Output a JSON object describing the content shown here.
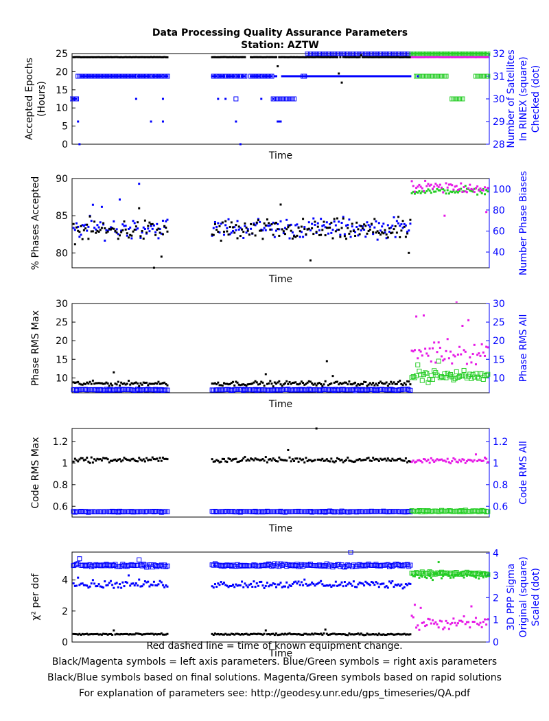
{
  "title_line1": "Data Processing Quality Assurance Parameters",
  "title_line2": "Station: AZTW",
  "footer": [
    "Red dashed line = time of known equipment change.",
    "Black/Magenta symbols = left axis parameters. Blue/Green symbols = right axis parameters",
    "Black/Blue symbols based on final solutions.  Magenta/Green symbols based on rapid solutions",
    "For explanation of parameters see: http://geodesy.unr.edu/gps_timeseries/QA.pdf"
  ],
  "colors": {
    "final_left": "#000000",
    "final_right": "#0000ff",
    "rapid_left": "#e619e6",
    "rapid_right": "#22cc22"
  },
  "chart_data": [
    {
      "type": "scatter",
      "xlabel": "Time",
      "ylabel_left": [
        "Accepted Epochs",
        "(Hours)"
      ],
      "ylabel_right": [
        "Number of Satellites",
        "In RINEX (square)",
        "Checked (dot)"
      ],
      "yleft": {
        "lim": [
          0,
          25
        ],
        "ticks": [
          0,
          5,
          10,
          15,
          20,
          25
        ],
        "labels": [
          "0",
          "5",
          "10",
          "15",
          "20",
          "25"
        ]
      },
      "yright": {
        "lim": [
          28,
          32
        ],
        "ticks": [
          28,
          29,
          30,
          31,
          32
        ],
        "labels": [
          "28",
          "29",
          "30",
          "31",
          "32"
        ]
      },
      "xlim": [
        0,
        280
      ],
      "gaps": [
        [
          65,
          94
        ],
        [
          117,
          120
        ]
      ],
      "rapid_start": 228,
      "left_series": {
        "marker": "dot",
        "final": {
          "base": 24,
          "noise": 0.05,
          "outliers": [
            [
              138,
              21.5
            ],
            [
              179,
              19.5
            ],
            [
              181,
              17
            ],
            [
              194,
              24.5
            ]
          ]
        },
        "rapid": {
          "base": 24,
          "noise": 0.05,
          "outliers": []
        }
      },
      "right_series": [
        {
          "marker": "square",
          "final": {
            "segments": [
              [
                0,
                4,
                30
              ],
              [
                4,
                65,
                31
              ],
              [
                95,
                117,
                31
              ],
              [
                120,
                135,
                31
              ],
              [
                135,
                150,
                30
              ],
              [
                155,
                157,
                31
              ],
              [
                158,
                228,
                32
              ]
            ],
            "points": [
              [
                110,
                30
              ]
            ]
          },
          "rapid": {
            "segments": [
              [
                228,
                280,
                32
              ],
              [
                231,
                252,
                31
              ],
              [
                271,
                280,
                31
              ],
              [
                255,
                263,
                30
              ]
            ]
          }
        },
        {
          "marker": "dot",
          "final": {
            "base": 31,
            "noise": 0,
            "points": [
              [
                1,
                30
              ],
              [
                2,
                30
              ],
              [
                3,
                30
              ],
              [
                4,
                29
              ],
              [
                5,
                28
              ],
              [
                43,
                30
              ],
              [
                61,
                30
              ],
              [
                53,
                29
              ],
              [
                61,
                29
              ],
              [
                110,
                29
              ],
              [
                113,
                28
              ],
              [
                98,
                30
              ],
              [
                103,
                30
              ],
              [
                127,
                30
              ],
              [
                135,
                30
              ],
              [
                138,
                29
              ],
              [
                139,
                29
              ],
              [
                140,
                29
              ],
              [
                181,
                31
              ],
              [
                198,
                31
              ],
              [
                232,
                31
              ]
            ]
          },
          "rapid": {
            "base": 32,
            "noise": 0,
            "points": []
          }
        }
      ]
    },
    {
      "type": "scatter",
      "xlabel": "Time",
      "ylabel_left": [
        "% Phases Accepted"
      ],
      "ylabel_right": [
        "Number Phase Biases"
      ],
      "yleft": {
        "lim": [
          78,
          90
        ],
        "ticks": [
          80,
          85,
          90
        ],
        "labels": [
          "80",
          "85",
          "90"
        ]
      },
      "yright": {
        "lim": [
          25,
          110
        ],
        "ticks": [
          40,
          60,
          80,
          100
        ],
        "labels": [
          "40",
          "60",
          "80",
          "100"
        ]
      },
      "xlim": [
        0,
        280
      ],
      "gaps": [
        [
          65,
          94
        ]
      ],
      "rapid_start": 228,
      "left_series": {
        "marker": "dot",
        "final": {
          "base": 83,
          "noise": 2.2,
          "outliers": [
            [
              55,
              78
            ],
            [
              45,
              86
            ],
            [
              60,
              79.5
            ],
            [
              140,
              86.5
            ],
            [
              160,
              79
            ],
            [
              226,
              80
            ]
          ]
        },
        "rapid": {
          "base": 88.8,
          "noise": 1.2,
          "outliers": [
            [
              250,
              85
            ],
            [
              278,
              85.5
            ]
          ]
        }
      },
      "right_series": [
        {
          "marker": "dot",
          "final": {
            "base": 63,
            "noise": 14,
            "outliers": [
              [
                45,
                105
              ],
              [
                14,
                85
              ],
              [
                32,
                90
              ],
              [
                20,
                83
              ]
            ]
          },
          "rapid": {
            "base": 98,
            "noise": 4,
            "outliers": [
              [
                264,
                103
              ]
            ]
          }
        }
      ]
    },
    {
      "type": "scatter",
      "xlabel": "Time",
      "ylabel_left": [
        "Phase RMS Max"
      ],
      "ylabel_right": [
        "Phase RMS All"
      ],
      "yleft": {
        "lim": [
          6,
          30
        ],
        "ticks": [
          10,
          15,
          20,
          25,
          30
        ],
        "labels": [
          "10",
          "15",
          "20",
          "25",
          "30"
        ]
      },
      "yright": {
        "lim": [
          6,
          30
        ],
        "ticks": [
          10,
          15,
          20,
          25,
          30
        ],
        "labels": [
          "10",
          "15",
          "20",
          "25",
          "30"
        ]
      },
      "xlim": [
        0,
        280
      ],
      "gaps": [
        [
          65,
          94
        ]
      ],
      "rapid_start": 228,
      "left_series": {
        "marker": "dot",
        "final": {
          "base": 8.5,
          "noise": 0.9,
          "outliers": [
            [
              28,
              11.5
            ],
            [
              130,
              11
            ],
            [
              171,
              14.5
            ],
            [
              175,
              10.5
            ]
          ]
        },
        "rapid": {
          "base": 17,
          "noise": 5,
          "outliers": [
            [
              231,
              26.5
            ],
            [
              236,
              26.8
            ],
            [
              258,
              30.5
            ],
            [
              262,
              24
            ],
            [
              266,
              25.5
            ]
          ]
        }
      },
      "right_series": [
        {
          "marker": "square",
          "final": {
            "base": 6.8,
            "noise": 0.25,
            "outliers": []
          },
          "rapid": {
            "base": 10.5,
            "noise": 2.2,
            "outliers": [
              [
                232,
                13.5
              ],
              [
                246,
                14.5
              ]
            ]
          }
        }
      ]
    },
    {
      "type": "scatter",
      "xlabel": "Time",
      "ylabel_left": [
        "Code RMS Max"
      ],
      "ylabel_right": [
        "Code RMS All"
      ],
      "yleft": {
        "lim": [
          0.5,
          1.32
        ],
        "ticks": [
          0.6,
          0.8,
          1,
          1.2
        ],
        "labels": [
          "0.6",
          "0.8",
          "1",
          "1.2"
        ]
      },
      "yright": {
        "lim": [
          0.5,
          1.32
        ],
        "ticks": [
          0.6,
          0.8,
          1,
          1.2
        ],
        "labels": [
          "0.6",
          "0.8",
          "1",
          "1.2"
        ]
      },
      "xlim": [
        0,
        280
      ],
      "gaps": [
        [
          65,
          94
        ]
      ],
      "rapid_start": 228,
      "left_series": {
        "marker": "dot",
        "final": {
          "base": 1.03,
          "noise": 0.035,
          "outliers": [
            [
              164,
              1.32
            ],
            [
              145,
              1.12
            ]
          ]
        },
        "rapid": {
          "base": 1.02,
          "noise": 0.03,
          "outliers": [
            [
              271,
              1.08
            ],
            [
              277,
              1.05
            ]
          ]
        }
      },
      "right_series": [
        {
          "marker": "square",
          "final": {
            "base": 0.55,
            "noise": 0.008,
            "outliers": []
          },
          "rapid": {
            "base": 0.555,
            "noise": 0.012,
            "outliers": []
          }
        }
      ]
    },
    {
      "type": "scatter",
      "xlabel": "Time",
      "ylabel_left": [
        "χ² per dof"
      ],
      "ylabel_right": [
        "3D PPP Sigma",
        "Original (square)",
        "Scaled (dot)"
      ],
      "yleft": {
        "lim": [
          0,
          5.8
        ],
        "ticks": [
          0,
          2,
          4
        ],
        "labels": [
          "0",
          "2",
          "4"
        ]
      },
      "yright": {
        "lim": [
          0,
          4.05
        ],
        "ticks": [
          0,
          1,
          2,
          3,
          4
        ],
        "labels": [
          "0",
          "1",
          "2",
          "3",
          "4"
        ]
      },
      "xlim": [
        0,
        280
      ],
      "gaps": [
        [
          65,
          94
        ]
      ],
      "rapid_start": 228,
      "left_series": {
        "marker": "dot",
        "final": {
          "base": 0.5,
          "noise": 0.07,
          "outliers": [
            [
              28,
              0.75
            ],
            [
              130,
              0.75
            ],
            [
              170,
              0.8
            ]
          ]
        },
        "rapid": {
          "base": 1.2,
          "noise": 0.6,
          "outliers": [
            [
              230,
              2.4
            ],
            [
              234,
              2.2
            ],
            [
              268,
              2.3
            ]
          ]
        }
      },
      "right_series": [
        {
          "marker": "square",
          "final": {
            "base": 3.45,
            "noise": 0.1,
            "outliers": [
              [
                5,
                3.75
              ],
              [
                45,
                3.7
              ],
              [
                187,
                4.05
              ]
            ]
          },
          "rapid": {
            "base": 3.1,
            "noise": 0.08,
            "outliers": []
          }
        },
        {
          "marker": "dot",
          "final": {
            "base": 2.6,
            "noise": 0.25,
            "outliers": [
              [
                4,
                2.9
              ],
              [
                38,
                3.0
              ]
            ]
          },
          "rapid": {
            "base": 3.0,
            "noise": 0.25,
            "outliers": [
              [
                246,
                3.6
              ]
            ]
          }
        }
      ]
    }
  ]
}
